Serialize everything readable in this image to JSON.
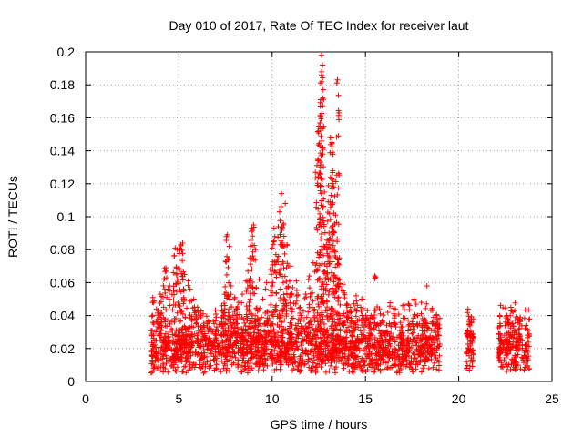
{
  "chart_data": {
    "type": "scatter",
    "title": "Day 010 of 2017, Rate Of TEC Index for receiver laut",
    "xlabel": "GPS time / hours",
    "ylabel": "ROTI / TECUs",
    "xlim": [
      0,
      25
    ],
    "ylim": [
      0,
      0.2
    ],
    "x_ticks": [
      0,
      5,
      10,
      15,
      20,
      25
    ],
    "y_ticks": [
      0,
      0.02,
      0.04,
      0.06,
      0.08,
      0.1,
      0.12,
      0.14,
      0.16,
      0.18,
      0.2
    ],
    "x_tick_labels": [
      "0",
      "5",
      "10",
      "15",
      "20",
      "25"
    ],
    "y_tick_labels": [
      "0",
      "0.02",
      "0.04",
      "0.06",
      "0.08",
      "0.1",
      "0.12",
      "0.14",
      "0.16",
      "0.18",
      "0.2"
    ],
    "grid": true,
    "marker": "+",
    "color": "#ff0000",
    "series": [
      {
        "data_intervals_hours": [
          [
            3.5,
            19.0
          ],
          [
            20.4,
            20.8
          ],
          [
            22.1,
            23.8
          ]
        ],
        "points": [
          [
            3.6,
            0.051
          ],
          [
            3.8,
            0.044
          ],
          [
            4.0,
            0.053
          ],
          [
            4.2,
            0.062
          ],
          [
            4.3,
            0.069
          ],
          [
            4.5,
            0.058
          ],
          [
            4.7,
            0.066
          ],
          [
            4.8,
            0.081
          ],
          [
            4.9,
            0.08
          ],
          [
            5.0,
            0.068
          ],
          [
            5.1,
            0.083
          ],
          [
            5.2,
            0.084
          ],
          [
            5.3,
            0.065
          ],
          [
            5.5,
            0.061
          ],
          [
            5.6,
            0.056
          ],
          [
            5.8,
            0.05
          ],
          [
            6.0,
            0.045
          ],
          [
            6.3,
            0.041
          ],
          [
            6.6,
            0.036
          ],
          [
            7.0,
            0.039
          ],
          [
            7.3,
            0.046
          ],
          [
            7.5,
            0.073
          ],
          [
            7.6,
            0.089
          ],
          [
            7.7,
            0.082
          ],
          [
            7.8,
            0.058
          ],
          [
            8.0,
            0.051
          ],
          [
            8.2,
            0.048
          ],
          [
            8.4,
            0.053
          ],
          [
            8.6,
            0.061
          ],
          [
            8.7,
            0.067
          ],
          [
            8.8,
            0.075
          ],
          [
            8.9,
            0.093
          ],
          [
            9.0,
            0.095
          ],
          [
            9.1,
            0.08
          ],
          [
            9.3,
            0.062
          ],
          [
            9.5,
            0.05
          ],
          [
            9.7,
            0.06
          ],
          [
            9.9,
            0.068
          ],
          [
            10.0,
            0.081
          ],
          [
            10.1,
            0.093
          ],
          [
            10.2,
            0.077
          ],
          [
            10.4,
            0.103
          ],
          [
            10.5,
            0.114
          ],
          [
            10.6,
            0.096
          ],
          [
            10.7,
            0.108
          ],
          [
            10.8,
            0.083
          ],
          [
            11.0,
            0.07
          ],
          [
            11.1,
            0.057
          ],
          [
            11.3,
            0.061
          ],
          [
            11.5,
            0.045
          ],
          [
            11.8,
            0.053
          ],
          [
            12.0,
            0.064
          ],
          [
            12.2,
            0.072
          ],
          [
            12.4,
            0.131
          ],
          [
            12.5,
            0.155
          ],
          [
            12.6,
            0.171
          ],
          [
            12.65,
            0.198
          ],
          [
            12.7,
            0.192
          ],
          [
            12.8,
            0.115
          ],
          [
            12.9,
            0.083
          ],
          [
            13.0,
            0.109
          ],
          [
            13.1,
            0.148
          ],
          [
            13.2,
            0.145
          ],
          [
            13.25,
            0.128
          ],
          [
            13.3,
            0.118
          ],
          [
            13.4,
            0.101
          ],
          [
            13.5,
            0.183
          ],
          [
            13.6,
            0.075
          ],
          [
            13.8,
            0.059
          ],
          [
            14.0,
            0.047
          ],
          [
            14.2,
            0.045
          ],
          [
            14.5,
            0.052
          ],
          [
            14.8,
            0.05
          ],
          [
            15.1,
            0.043
          ],
          [
            15.3,
            0.04
          ],
          [
            15.5,
            0.064
          ],
          [
            15.8,
            0.041
          ],
          [
            16.2,
            0.042
          ],
          [
            16.6,
            0.044
          ],
          [
            17.0,
            0.046
          ],
          [
            17.3,
            0.047
          ],
          [
            17.6,
            0.05
          ],
          [
            18.0,
            0.048
          ],
          [
            18.3,
            0.058
          ],
          [
            18.6,
            0.043
          ],
          [
            18.8,
            0.04
          ],
          [
            20.5,
            0.044
          ],
          [
            20.6,
            0.038
          ],
          [
            20.7,
            0.029
          ],
          [
            22.2,
            0.04
          ],
          [
            22.5,
            0.036
          ],
          [
            22.8,
            0.045
          ],
          [
            23.0,
            0.043
          ],
          [
            23.3,
            0.039
          ],
          [
            23.6,
            0.034
          ]
        ]
      }
    ]
  }
}
